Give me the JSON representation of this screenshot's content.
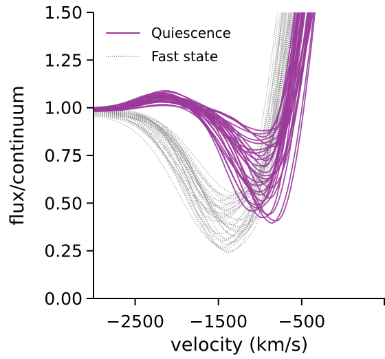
{
  "chart_data": {
    "type": "line",
    "title": "",
    "xlabel": "velocity (km/s)",
    "ylabel": "flux/continuum",
    "xlim": [
      -3000,
      500
    ],
    "ylim": [
      0.0,
      1.5
    ],
    "x_ticks": [
      -2500,
      -1500,
      -500
    ],
    "x_tick_labels": [
      "−2500",
      "−1500",
      "−500"
    ],
    "y_ticks": [
      0.0,
      0.25,
      0.5,
      0.75,
      1.0,
      1.25,
      1.5
    ],
    "y_tick_labels": [
      "0.00",
      "0.25",
      "0.50",
      "0.75",
      "1.00",
      "1.25",
      "1.50"
    ],
    "grid": false,
    "legend_position": "top-left",
    "legend": [
      {
        "label": "Quiescence",
        "style": "solid",
        "color": "#9b3a9b"
      },
      {
        "label": "Fast state",
        "style": "dotted",
        "color": "#8a8a8a"
      }
    ],
    "series": [
      {
        "name": "Quiescence",
        "style": "solid",
        "color": "#9b3a9b",
        "count": 30,
        "min_flux_range": [
          0.39,
          0.88
        ],
        "min_velocity_range": [
          -1100,
          -800
        ],
        "peak_flux_range": [
          0.99,
          1.09
        ],
        "peak_velocity": -2150
      },
      {
        "name": "Fast state",
        "style": "dotted",
        "color": "#8a8a8a",
        "count": 35,
        "min_flux_range": [
          0.24,
          0.55
        ],
        "min_velocity_range": [
          -1500,
          -1250
        ],
        "peak_flux_range": [
          0.95,
          1.0
        ],
        "peak_velocity": -2900
      }
    ]
  }
}
